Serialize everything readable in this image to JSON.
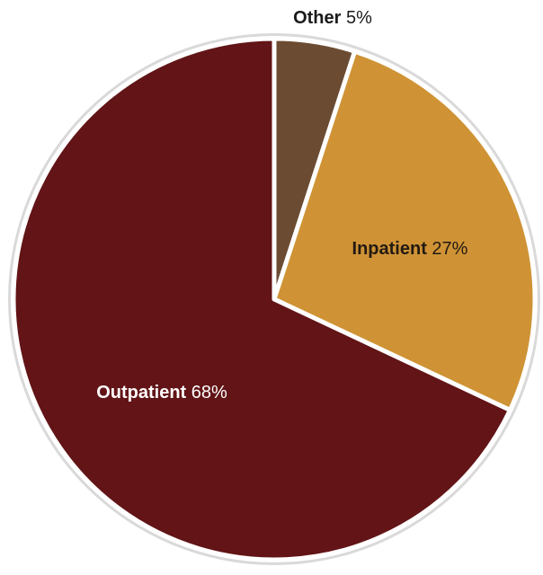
{
  "chart_data": {
    "type": "pie",
    "title": "",
    "start": "12 o'clock",
    "direction": "clockwise",
    "slices": [
      {
        "label": "Other",
        "value": 5,
        "display": "5%",
        "color": "#6b4c33",
        "label_color": "#1a1a1a",
        "label_placement": "outside-top"
      },
      {
        "label": "Inpatient",
        "value": 27,
        "display": "27%",
        "color": "#cf9335",
        "label_color": "#231a12",
        "label_placement": "inside"
      },
      {
        "label": "Outpatient",
        "value": 68,
        "display": "68%",
        "color": "#621416",
        "label_color": "#ffffff",
        "label_placement": "inside"
      }
    ],
    "legend": "none"
  }
}
